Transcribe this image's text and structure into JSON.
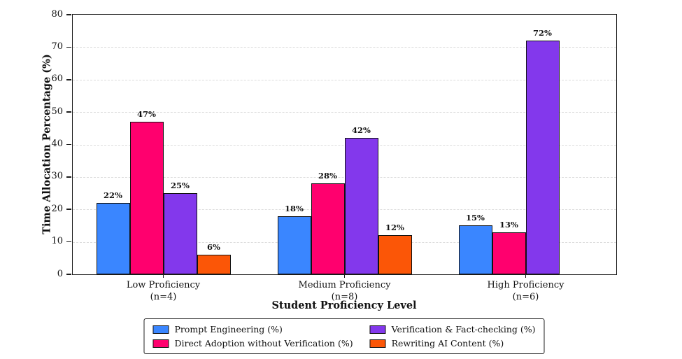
{
  "chart_data": {
    "type": "bar",
    "title": "",
    "xlabel": "Student Proficiency Level",
    "ylabel": "Time Allocation Percentage (%)",
    "ylim": [
      0,
      80
    ],
    "yticks": [
      0,
      10,
      20,
      30,
      40,
      50,
      60,
      70,
      80
    ],
    "grid": {
      "axis": "y",
      "style": "dashed",
      "color": "#dcdcdc"
    },
    "bar_label_suffix": "%",
    "bar_edge_color": "#111111",
    "categories": [
      "Low Proficiency",
      "Medium Proficiency",
      "High Proficiency"
    ],
    "category_sublabels": [
      "(n=4)",
      "(n=8)",
      "(n=6)"
    ],
    "series": [
      {
        "name": "Prompt Engineering (%)",
        "color": "#3A86FF",
        "values": [
          22,
          18,
          15
        ]
      },
      {
        "name": "Direct Adoption without Verification (%)",
        "color": "#FF006E",
        "values": [
          47,
          28,
          13
        ]
      },
      {
        "name": "Verification & Fact-checking (%)",
        "color": "#8338EC",
        "values": [
          25,
          42,
          72
        ]
      },
      {
        "name": "Rewriting AI Content (%)",
        "color": "#FB5607",
        "values": [
          6,
          12,
          0
        ]
      }
    ],
    "legend": {
      "position": "bottom-center",
      "columns": 2
    }
  }
}
